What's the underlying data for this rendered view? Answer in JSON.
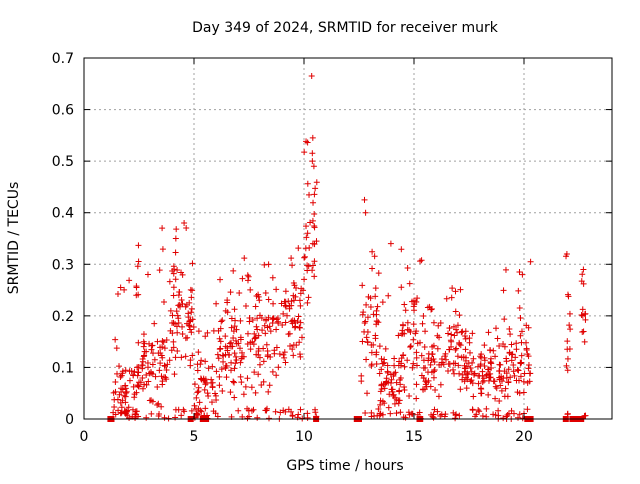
{
  "chart_data": {
    "type": "scatter",
    "title": "Day 349 of 2024, SRMTID for receiver murk",
    "xlabel": "GPS time / hours",
    "ylabel": "SRMTID / TECUs",
    "xlim": [
      0,
      24
    ],
    "ylim": [
      0,
      0.7
    ],
    "xticks": [
      "0",
      "5",
      "10",
      "15",
      "20"
    ],
    "yticks": [
      "0",
      "0.1",
      "0.2",
      "0.3",
      "0.4",
      "0.5",
      "0.6",
      "0.7"
    ],
    "grid": true,
    "marker": "plus",
    "color": "#e00000",
    "segments": [
      {
        "start": 1.3,
        "end": 2.4,
        "base": 0.06,
        "amp": 0.05,
        "peak": 0.28,
        "n": 70
      },
      {
        "start": 2.4,
        "end": 3.8,
        "base": 0.1,
        "amp": 0.06,
        "peak": 0.34,
        "n": 90
      },
      {
        "start": 3.8,
        "end": 5.0,
        "base": 0.2,
        "amp": 0.07,
        "peak": 0.38,
        "n": 80
      },
      {
        "start": 5.0,
        "end": 6.0,
        "base": 0.06,
        "amp": 0.05,
        "peak": 0.2,
        "n": 55
      },
      {
        "start": 6.0,
        "end": 7.3,
        "base": 0.12,
        "amp": 0.07,
        "peak": 0.32,
        "n": 85
      },
      {
        "start": 7.3,
        "end": 9.0,
        "base": 0.15,
        "amp": 0.07,
        "peak": 0.3,
        "n": 100
      },
      {
        "start": 9.0,
        "end": 10.0,
        "base": 0.2,
        "amp": 0.07,
        "peak": 0.35,
        "n": 65
      },
      {
        "start": 10.0,
        "end": 10.6,
        "base": 0.35,
        "amp": 0.1,
        "peak": 0.55,
        "n": 40
      },
      {
        "start": 12.6,
        "end": 13.4,
        "base": 0.18,
        "amp": 0.08,
        "peak": 0.42,
        "n": 50
      },
      {
        "start": 13.4,
        "end": 14.4,
        "base": 0.07,
        "amp": 0.05,
        "peak": 0.25,
        "n": 65
      },
      {
        "start": 14.4,
        "end": 15.4,
        "base": 0.14,
        "amp": 0.07,
        "peak": 0.33,
        "n": 65
      },
      {
        "start": 15.4,
        "end": 16.4,
        "base": 0.1,
        "amp": 0.05,
        "peak": 0.22,
        "n": 60
      },
      {
        "start": 16.4,
        "end": 17.2,
        "base": 0.14,
        "amp": 0.05,
        "peak": 0.26,
        "n": 50
      },
      {
        "start": 17.2,
        "end": 19.0,
        "base": 0.09,
        "amp": 0.04,
        "peak": 0.18,
        "n": 110
      },
      {
        "start": 19.0,
        "end": 20.3,
        "base": 0.1,
        "amp": 0.06,
        "peak": 0.3,
        "n": 80
      },
      {
        "start": 21.9,
        "end": 22.1,
        "base": 0.15,
        "amp": 0.08,
        "peak": 0.32,
        "n": 14
      },
      {
        "start": 22.6,
        "end": 22.8,
        "base": 0.2,
        "amp": 0.06,
        "peak": 0.29,
        "n": 14
      }
    ],
    "outliers": [
      {
        "x": 10.35,
        "y": 0.665
      },
      {
        "x": 10.4,
        "y": 0.545
      },
      {
        "x": 10.38,
        "y": 0.5
      },
      {
        "x": 10.45,
        "y": 0.49
      },
      {
        "x": 12.75,
        "y": 0.425
      },
      {
        "x": 12.8,
        "y": 0.4
      },
      {
        "x": 13.95,
        "y": 0.34
      },
      {
        "x": 4.55,
        "y": 0.38
      },
      {
        "x": 3.55,
        "y": 0.37
      },
      {
        "x": 21.95,
        "y": 0.32
      },
      {
        "x": 20.3,
        "y": 0.305
      },
      {
        "x": 22.7,
        "y": 0.29
      }
    ],
    "gap_markers": [
      1.2,
      1.25,
      4.85,
      5.4,
      5.55,
      10.55,
      12.4,
      12.5,
      15.25,
      20.15,
      20.3,
      21.9,
      22.2,
      22.35,
      22.6
    ]
  }
}
